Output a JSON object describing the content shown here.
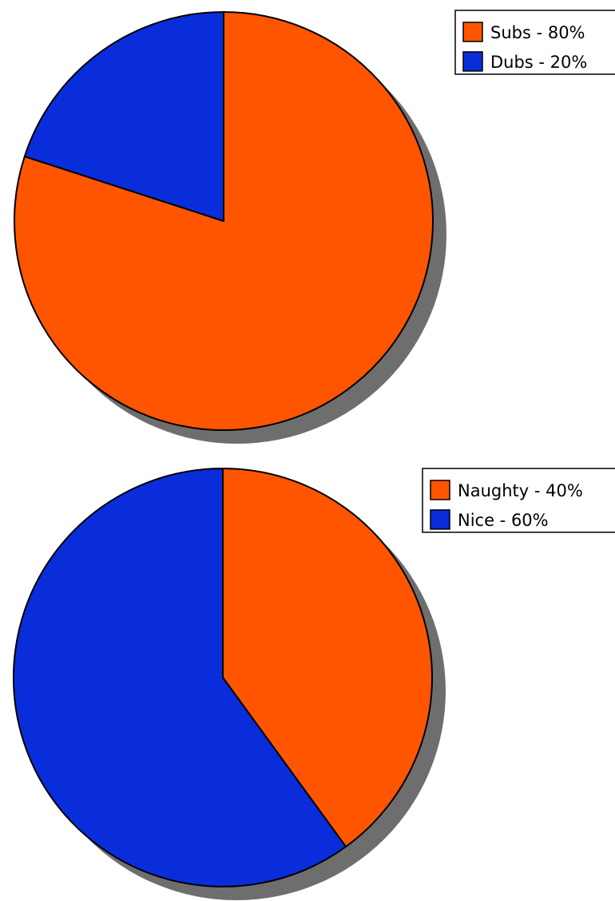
{
  "colors": {
    "orange": "#ff5500",
    "blue": "#0a2ddc",
    "shadow": "#6e6e6e",
    "outline": "#000000"
  },
  "chart_data": [
    {
      "type": "pie",
      "title": "",
      "legend_position": "top-right",
      "slices": [
        {
          "label": "Subs - 80%",
          "value": 80,
          "color": "#ff5500"
        },
        {
          "label": "Dubs - 20%",
          "value": 20,
          "color": "#0a2ddc"
        }
      ]
    },
    {
      "type": "pie",
      "title": "",
      "legend_position": "top-right",
      "slices": [
        {
          "label": "Naughty - 40%",
          "value": 40,
          "color": "#ff5500"
        },
        {
          "label": "Nice - 60%",
          "value": 60,
          "color": "#0a2ddc"
        }
      ]
    }
  ]
}
